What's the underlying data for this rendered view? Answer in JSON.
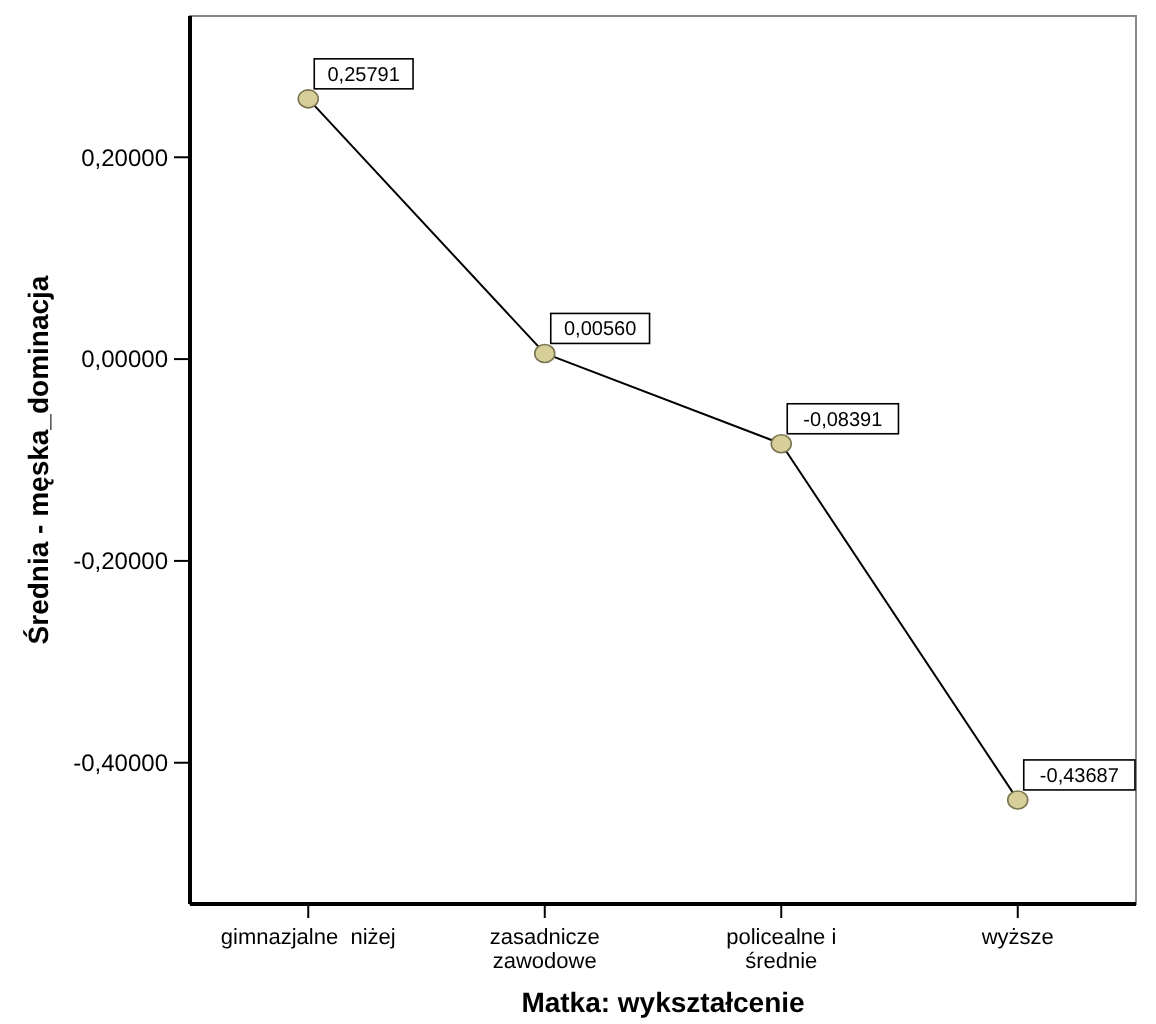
{
  "chart_data": {
    "type": "line",
    "xlabel": "Matka: wykształcenie",
    "ylabel": "Średnia - męska_dominacja",
    "categories": [
      "gimnazjalne  niżej",
      "zasadnicze zawodowe",
      "policealne i średnie",
      "wyższe"
    ],
    "series": [
      {
        "color": "#d6cf9a",
        "values": [
          0.25791,
          0.0056,
          -0.08391,
          -0.43687
        ]
      }
    ],
    "value_labels": [
      "0,25791",
      "0,00560",
      "-0,08391",
      "-0,43687"
    ],
    "ylim": [
      -0.54,
      0.34
    ],
    "yticks": [
      {
        "value": 0.2,
        "label": "0,20000"
      },
      {
        "value": 0,
        "label": "0,00000"
      },
      {
        "value": -0.2,
        "label": "-0,20000"
      },
      {
        "value": -0.4,
        "label": "-0,40000"
      }
    ],
    "marker": "circle",
    "line_style": "solid"
  }
}
